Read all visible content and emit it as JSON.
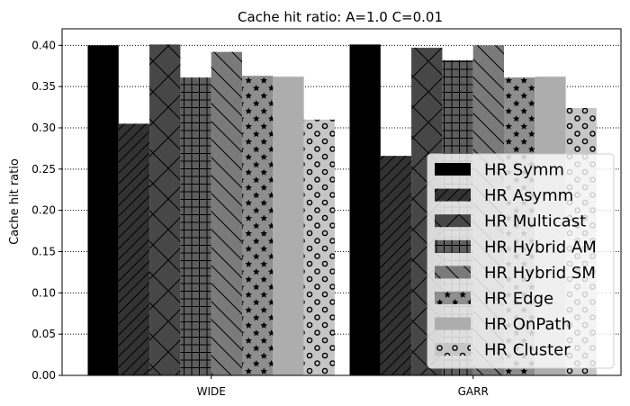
{
  "chart_data": {
    "type": "bar",
    "title": "Cache hit ratio: A=1.0 C=0.01",
    "xlabel": "",
    "ylabel": "Cache hit ratio",
    "categories": [
      "WIDE",
      "GARR"
    ],
    "ylim": [
      0,
      0.42
    ],
    "yticks": [
      "0.00",
      "0.05",
      "0.10",
      "0.15",
      "0.20",
      "0.25",
      "0.30",
      "0.35",
      "0.40"
    ],
    "grid": "horizontal dotted",
    "legend_position": "lower right",
    "series": [
      {
        "name": "HR Symm",
        "values": [
          0.4,
          0.401
        ],
        "color": "#000000",
        "hatch": "none"
      },
      {
        "name": "HR Asymm",
        "values": [
          0.305,
          0.266
        ],
        "color": "#323232",
        "hatch": "diagonal"
      },
      {
        "name": "HR Multicast",
        "values": [
          0.401,
          0.397
        ],
        "color": "#474747",
        "hatch": "diamond"
      },
      {
        "name": "HR Hybrid AM",
        "values": [
          0.361,
          0.382
        ],
        "color": "#5e5e5e",
        "hatch": "grid"
      },
      {
        "name": "HR Hybrid SM",
        "values": [
          0.392,
          0.4
        ],
        "color": "#7a7a7a",
        "hatch": "backslash"
      },
      {
        "name": "HR Edge",
        "values": [
          0.363,
          0.361
        ],
        "color": "#8e8e8e",
        "hatch": "star"
      },
      {
        "name": "HR OnPath",
        "values": [
          0.362,
          0.362
        ],
        "color": "#adadad",
        "hatch": "none"
      },
      {
        "name": "HR Cluster",
        "values": [
          0.31,
          0.324
        ],
        "color": "#c6c6c6",
        "hatch": "circle"
      }
    ]
  }
}
